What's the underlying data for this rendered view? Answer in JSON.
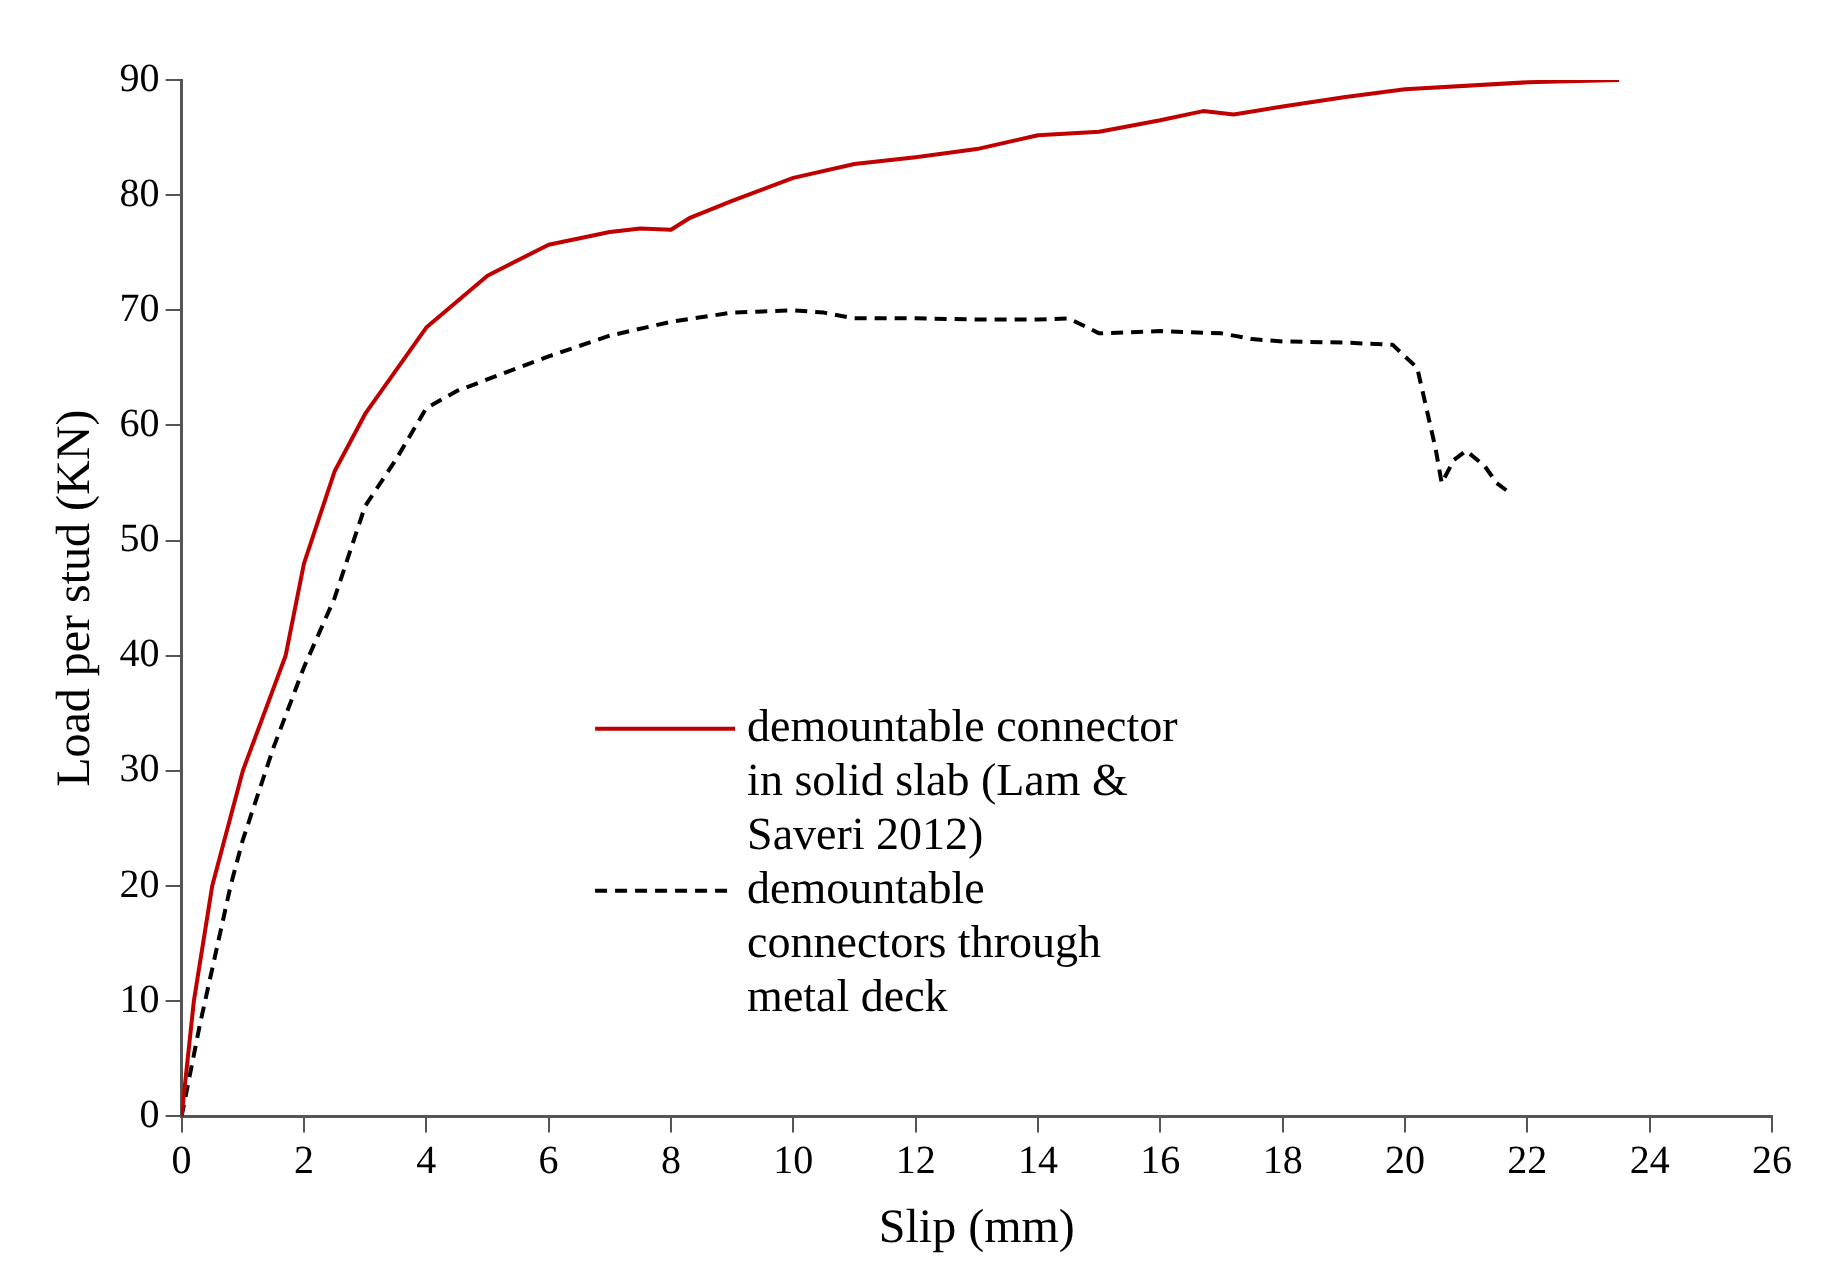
{
  "chart_data": {
    "type": "line",
    "xlabel": "Slip (mm)",
    "ylabel": "Load per stud (KN)",
    "xlim": [
      0,
      26
    ],
    "xticks": [
      0,
      2,
      4,
      6,
      8,
      10,
      12,
      14,
      16,
      18,
      20,
      22,
      24,
      26
    ],
    "ylim": [
      0,
      90
    ],
    "yticks": [
      0,
      10,
      20,
      30,
      40,
      50,
      60,
      70,
      80,
      90
    ],
    "grid": false,
    "legend": "center",
    "marker": "none",
    "series": [
      {
        "name": "demountable connector in solid slab (Lam & Saveri 2012)",
        "color": "#c00000",
        "line_style": "solid",
        "x": [
          0,
          0.2,
          0.5,
          1,
          1.7,
          2,
          2.5,
          3,
          4,
          5,
          6,
          7,
          7.5,
          8,
          8.3,
          9,
          10,
          11,
          12,
          13,
          14,
          15,
          16,
          16.7,
          17.2,
          18,
          19,
          20,
          22,
          23.5
        ],
        "values": [
          0,
          10,
          20,
          30,
          40,
          48,
          56,
          61,
          68.5,
          73,
          75.7,
          76.8,
          77.1,
          77,
          78,
          79.5,
          81.5,
          82.7,
          83.3,
          84,
          85.2,
          85.5,
          86.5,
          87.3,
          87,
          87.7,
          88.5,
          89.2,
          89.8,
          90
        ]
      },
      {
        "name": "demountable connectors through metal deck",
        "color": "#000000",
        "line_style": "dashed",
        "x": [
          0,
          0.3,
          0.8,
          1,
          1.5,
          2,
          2.5,
          3,
          3.5,
          4,
          4.5,
          6,
          7,
          8,
          9,
          10,
          10.5,
          11,
          12,
          13,
          14,
          14.5,
          15,
          16,
          17,
          17.5,
          18,
          19,
          19.8,
          20.2,
          20.5,
          20.6,
          20.8,
          21,
          21.3,
          21.5,
          21.7
        ],
        "values": [
          0,
          8,
          20,
          24,
          32,
          39,
          45,
          53,
          57,
          61.5,
          63,
          66,
          67.8,
          69,
          69.8,
          70,
          69.8,
          69.3,
          69.3,
          69.2,
          69.2,
          69.3,
          68,
          68.2,
          68,
          67.5,
          67.3,
          67.2,
          67,
          65,
          58,
          55,
          57,
          57.8,
          56.5,
          55,
          54.2
        ]
      }
    ]
  }
}
